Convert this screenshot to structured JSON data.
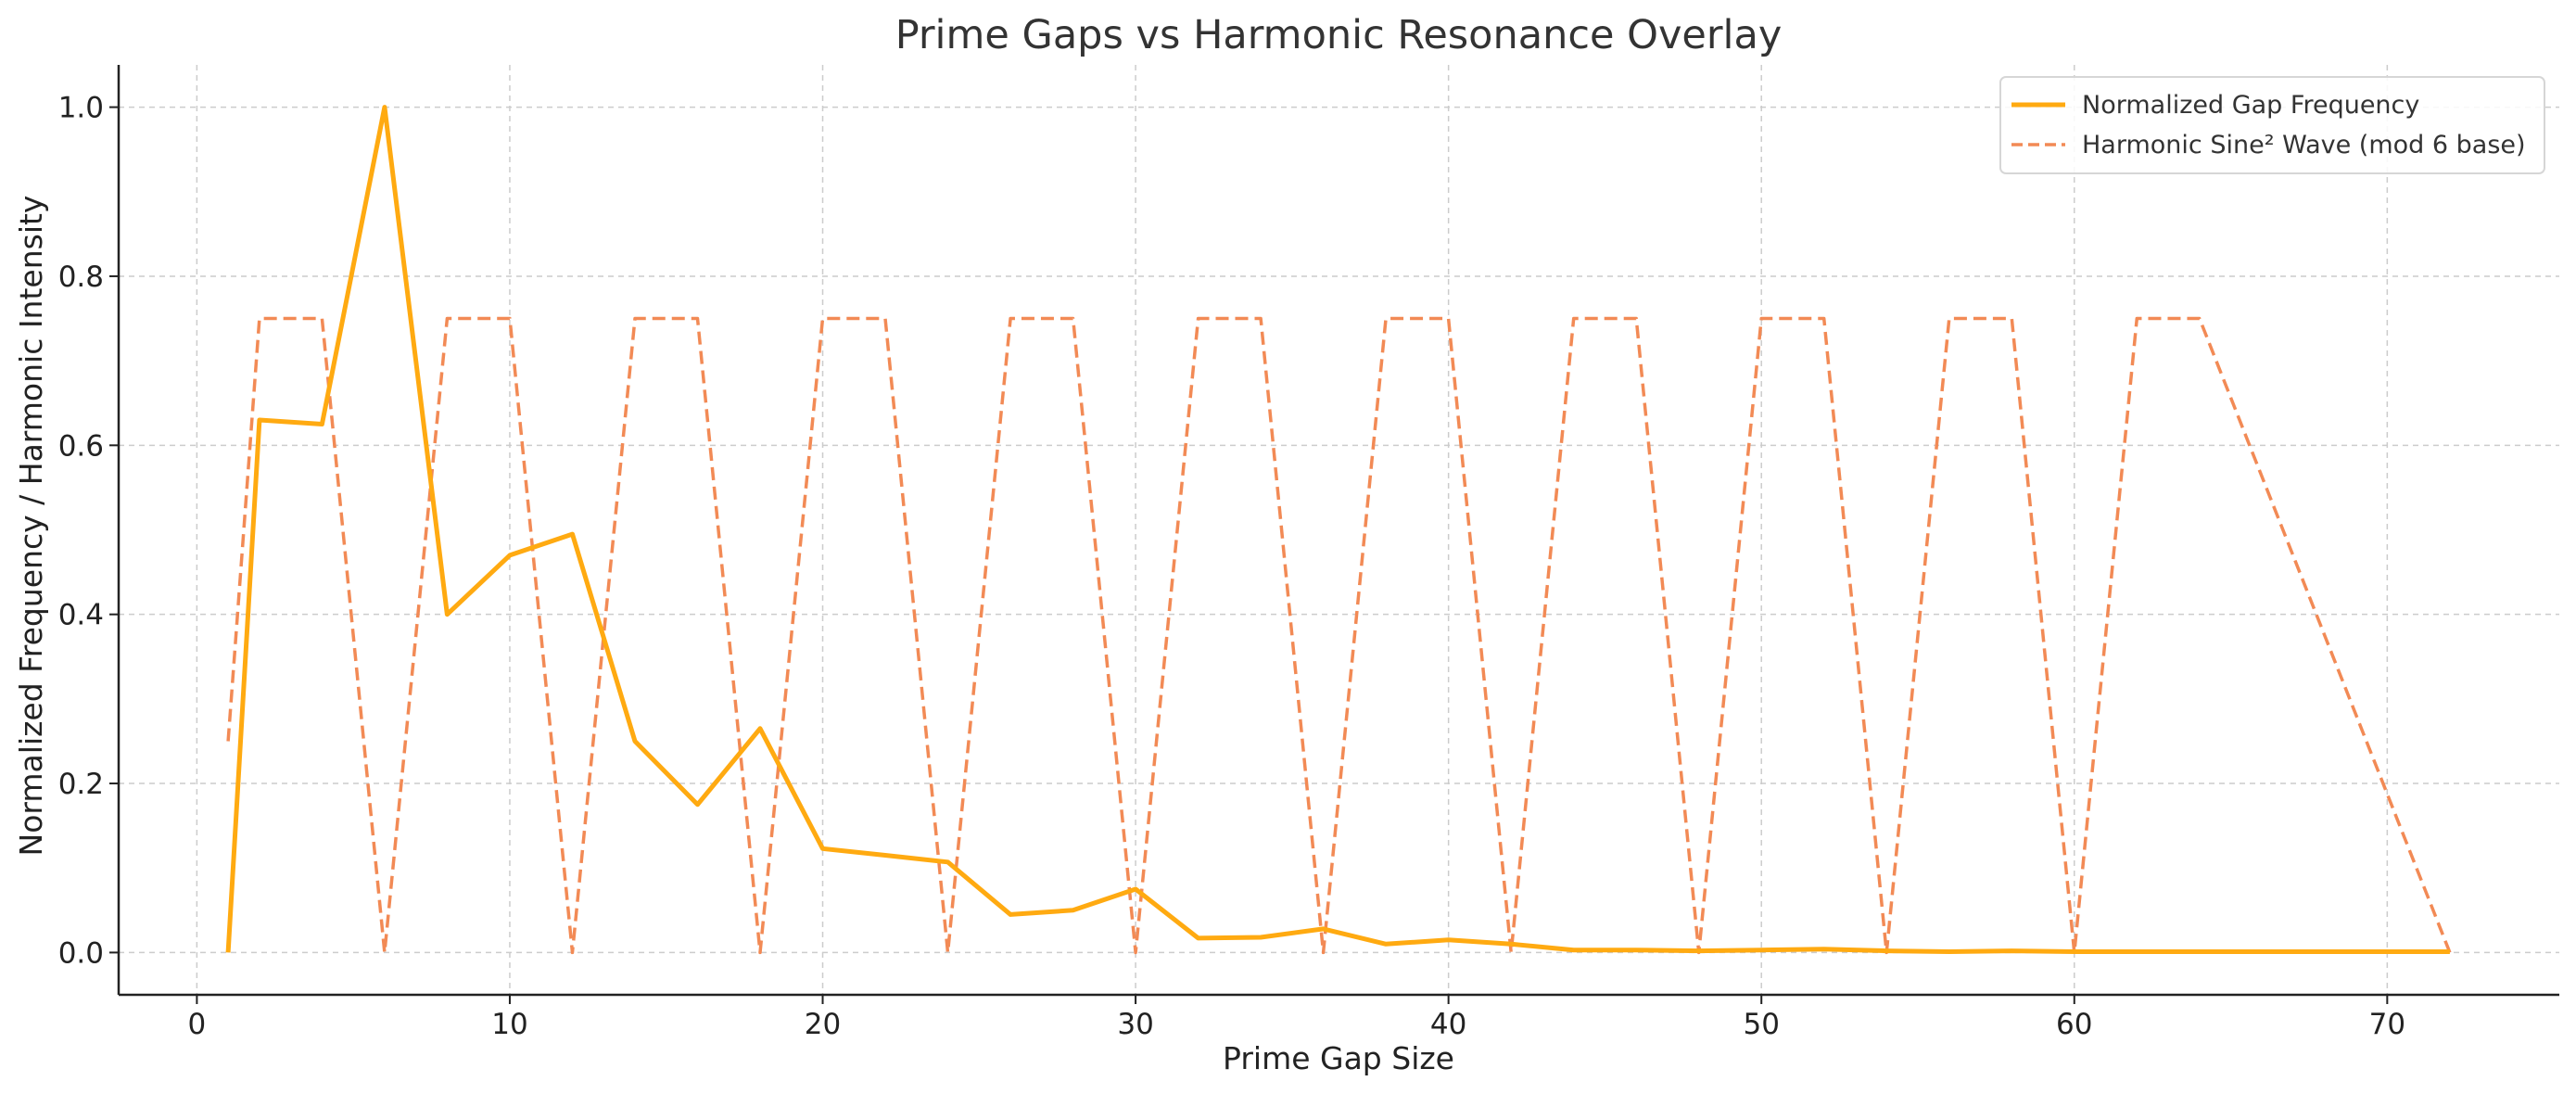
{
  "chart_data": {
    "type": "line",
    "title": "Prime Gaps vs Harmonic Resonance Overlay",
    "xlabel": "Prime Gap Size",
    "ylabel": "Normalized Frequency / Harmonic Intensity",
    "xlim": [
      -2.5,
      75.5
    ],
    "ylim": [
      -0.05,
      1.05
    ],
    "xticks": [
      0,
      10,
      20,
      30,
      40,
      50,
      60,
      70
    ],
    "yticks": [
      0.0,
      0.2,
      0.4,
      0.6,
      0.8,
      1.0
    ],
    "xtick_labels": [
      "0",
      "10",
      "20",
      "30",
      "40",
      "50",
      "60",
      "70"
    ],
    "ytick_labels": [
      "0.0",
      "0.2",
      "0.4",
      "0.6",
      "0.8",
      "1.0"
    ],
    "grid": true,
    "legend_position": "top-right",
    "series": [
      {
        "name": "Normalized Gap Frequency",
        "style": "solid",
        "color": "#ffaa11",
        "x": [
          1,
          2,
          4,
          6,
          8,
          10,
          12,
          14,
          16,
          18,
          20,
          22,
          24,
          26,
          28,
          30,
          32,
          34,
          36,
          38,
          40,
          42,
          44,
          46,
          48,
          50,
          52,
          54,
          56,
          58,
          60,
          62,
          64,
          66,
          68,
          70,
          72
        ],
        "y": [
          0.0,
          0.63,
          0.625,
          1.0,
          0.4,
          0.47,
          0.495,
          0.25,
          0.175,
          0.265,
          0.123,
          0.115,
          0.107,
          0.045,
          0.05,
          0.075,
          0.017,
          0.018,
          0.028,
          0.01,
          0.015,
          0.01,
          0.003,
          0.003,
          0.002,
          0.003,
          0.004,
          0.002,
          0.001,
          0.002,
          0.001,
          0.001,
          0.001,
          0.001,
          0.001,
          0.001,
          0.001
        ]
      },
      {
        "name": "Harmonic Sine² Wave (mod 6 base)",
        "style": "dashed",
        "color": "#f28a55",
        "x": [
          1,
          2,
          4,
          6,
          8,
          10,
          12,
          14,
          16,
          18,
          20,
          22,
          24,
          26,
          28,
          30,
          32,
          34,
          36,
          38,
          40,
          42,
          44,
          46,
          48,
          50,
          52,
          54,
          56,
          58,
          60,
          62,
          64,
          72
        ],
        "y": [
          0.25,
          0.75,
          0.75,
          0.0,
          0.75,
          0.75,
          0.0,
          0.75,
          0.75,
          0.0,
          0.75,
          0.75,
          0.0,
          0.75,
          0.75,
          0.0,
          0.75,
          0.75,
          0.0,
          0.75,
          0.75,
          0.0,
          0.75,
          0.75,
          0.0,
          0.75,
          0.75,
          0.0,
          0.75,
          0.75,
          0.0,
          0.75,
          0.75,
          0.0
        ]
      }
    ]
  }
}
